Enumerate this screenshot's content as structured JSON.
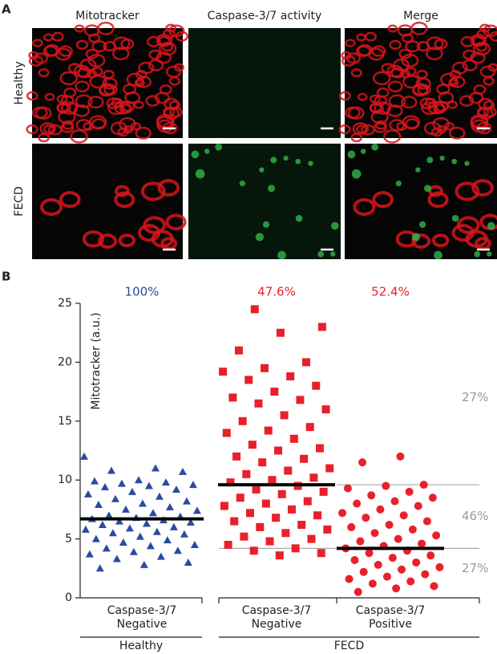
{
  "panel_a": {
    "label": "A",
    "columns": [
      "Mitotracker",
      "Caspase-3/7 activity",
      "Merge"
    ],
    "rows": [
      "Healthy",
      "FECD"
    ]
  },
  "chart_data": {
    "type": "strip",
    "panel_label": "B",
    "y_label": "Mitotracker (a.u.)",
    "ylim": [
      0,
      25
    ],
    "yticks": [
      0,
      5,
      10,
      15,
      20,
      25
    ],
    "categories": [
      "Caspase-3/7 Negative",
      "Caspase-3/7 Negative",
      "Caspase-3/7 Positive"
    ],
    "groups": [
      "Healthy",
      "FECD"
    ],
    "shares": {
      "values": [
        100,
        47.6,
        52.4
      ],
      "value_labels": [
        "100%",
        "47.6%",
        "52.4%"
      ]
    },
    "thresholds": [
      9.6,
      4.2
    ],
    "region_labels": {
      "values": [
        27,
        46,
        27
      ],
      "value_labels": [
        "27%",
        "46%",
        "27%"
      ]
    },
    "series": [
      {
        "marker": "triangle",
        "color": "#2b4ba0",
        "mean": 6.7,
        "values": [
          12,
          11,
          10.8,
          10.7,
          10,
          9.9,
          9.8,
          9.7,
          9.6,
          9.5,
          9.4,
          9.2,
          9,
          8.8,
          8.6,
          8.4,
          8.2,
          8,
          7.9,
          7.7,
          7.5,
          7.4,
          7.2,
          7,
          6.9,
          6.8,
          6.7,
          6.6,
          6.5,
          6.4,
          6.3,
          6.2,
          6,
          5.9,
          5.8,
          5.6,
          5.5,
          5.4,
          5.2,
          5,
          4.9,
          4.7,
          4.5,
          4.4,
          4.2,
          4,
          3.9,
          3.7,
          3.5,
          3.3,
          3,
          2.8,
          2.5
        ]
      },
      {
        "marker": "square",
        "color": "#e8202a",
        "mean": 9.6,
        "values": [
          24.5,
          23,
          22.5,
          21,
          20,
          19.5,
          19.2,
          18.8,
          18.5,
          18,
          17.5,
          17,
          16.8,
          16.5,
          16,
          15.5,
          15,
          14.5,
          14.2,
          14,
          13.5,
          13,
          12.7,
          12.5,
          12,
          11.8,
          11.5,
          11,
          10.8,
          10.5,
          10.2,
          10,
          9.8,
          9.5,
          9.2,
          9,
          8.8,
          8.5,
          8.2,
          8,
          7.8,
          7.5,
          7.2,
          7,
          6.8,
          6.5,
          6.2,
          6,
          5.8,
          5.5,
          5.2,
          5,
          4.8,
          4.5,
          4.2,
          4,
          3.8,
          3.6
        ]
      },
      {
        "marker": "circle",
        "color": "#e8202a",
        "mean": 4.2,
        "values": [
          12,
          11.5,
          9.6,
          9.5,
          9.3,
          9,
          8.7,
          8.5,
          8.2,
          8,
          7.8,
          7.5,
          7.2,
          7,
          6.8,
          6.5,
          6.2,
          6,
          5.8,
          5.5,
          5.3,
          5,
          4.8,
          4.6,
          4.4,
          4.2,
          4,
          3.8,
          3.6,
          3.4,
          3.2,
          3,
          2.8,
          2.6,
          2.4,
          2.2,
          2,
          1.8,
          1.6,
          1.4,
          1.2,
          1,
          0.8,
          0.5
        ]
      }
    ]
  }
}
